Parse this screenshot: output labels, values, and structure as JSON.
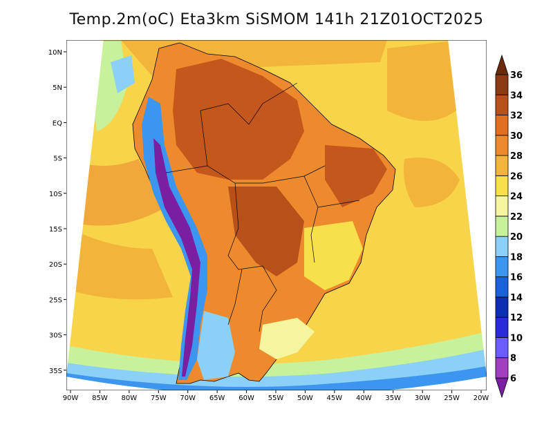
{
  "title": "Temp.2m(oC) Eta3km SiSMOM 141h 21Z01OCT2025",
  "lat_labels": [
    "10N",
    "5N",
    "EQ",
    "5S",
    "10S",
    "15S",
    "20S",
    "25S",
    "30S",
    "35S"
  ],
  "lon_labels": [
    "90W",
    "85W",
    "80W",
    "75W",
    "70W",
    "65W",
    "60W",
    "55W",
    "50W",
    "45W",
    "40W",
    "35W",
    "30W",
    "25W",
    "20W"
  ],
  "colorbar": {
    "labels": [
      "6",
      "8",
      "10",
      "12",
      "14",
      "16",
      "18",
      "20",
      "22",
      "24",
      "26",
      "28",
      "30",
      "32",
      "34",
      "36"
    ],
    "colors": [
      "#7b1fa2",
      "#a23fc0",
      "#6a5cff",
      "#2a2ad8",
      "#0b2fb0",
      "#1a62d9",
      "#3c96ef",
      "#8ad0f7",
      "#c7f29b",
      "#f5f5a0",
      "#f7e04a",
      "#f3b43c",
      "#ee8a2e",
      "#e07020",
      "#b8501a",
      "#8b3a12",
      "#6b2a0e"
    ]
  }
}
